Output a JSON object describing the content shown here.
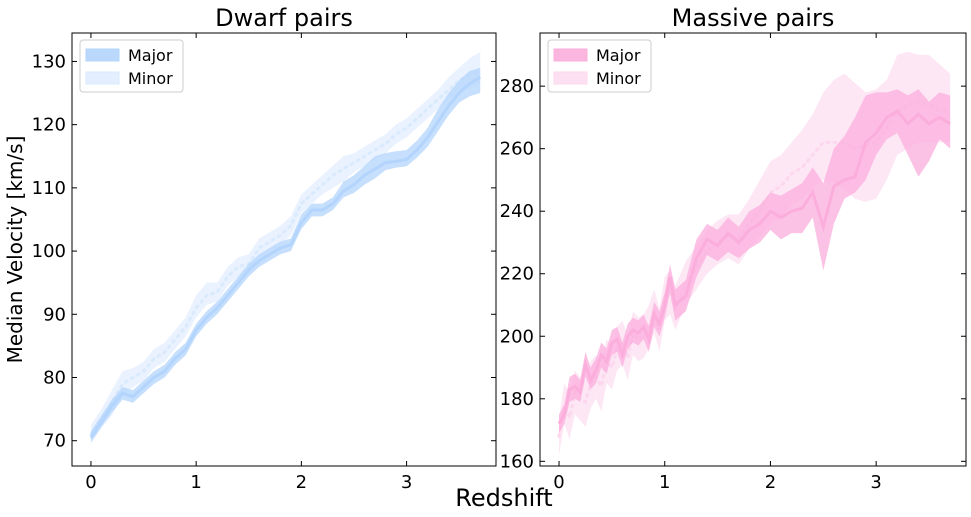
{
  "chart_data": [
    {
      "type": "area",
      "title": "Dwarf pairs",
      "ylabel": "Median Velocity [km/s]",
      "xlim": [
        -0.18,
        3.85
      ],
      "ylim": [
        66,
        134.5
      ],
      "xticks": [
        0,
        1,
        2,
        3
      ],
      "yticks": [
        70,
        80,
        90,
        100,
        110,
        120,
        130
      ],
      "legend": "top-left",
      "series": [
        {
          "name": "Major",
          "color": "#b3d4fc",
          "band_opacity": 0.75,
          "x": [
            0,
            0.1,
            0.2,
            0.3,
            0.4,
            0.5,
            0.6,
            0.7,
            0.8,
            0.9,
            1.0,
            1.1,
            1.2,
            1.3,
            1.4,
            1.5,
            1.6,
            1.7,
            1.8,
            1.9,
            2.0,
            2.1,
            2.2,
            2.3,
            2.4,
            2.5,
            2.6,
            2.7,
            2.8,
            2.9,
            3.0,
            3.1,
            3.2,
            3.3,
            3.4,
            3.5,
            3.6,
            3.7
          ],
          "mid": [
            70.5,
            73,
            75.5,
            77.5,
            77,
            78.5,
            80,
            81,
            83,
            84.5,
            87.5,
            89.5,
            91,
            93,
            95,
            97,
            98.5,
            99.5,
            100.5,
            101,
            104.5,
            106.5,
            106.5,
            107.5,
            109.5,
            110.5,
            112,
            113,
            114,
            114.2,
            114.5,
            116,
            118,
            120.5,
            123,
            125,
            126.5,
            127.5
          ],
          "lower": [
            69.8,
            72.2,
            74.5,
            76.5,
            76,
            77.5,
            79,
            80,
            82,
            83.5,
            86.5,
            88.5,
            90,
            92,
            94,
            96,
            97.5,
            98.5,
            99.5,
            100,
            103.5,
            105.5,
            105.5,
            106.5,
            108.5,
            109.2,
            110.5,
            111.5,
            112.8,
            113.2,
            113.4,
            114.8,
            116.5,
            119,
            121.5,
            123.5,
            124.5,
            125
          ],
          "upper": [
            71.5,
            74,
            76.5,
            78.5,
            78,
            79.5,
            81,
            82,
            84,
            85.5,
            88.5,
            90.5,
            92,
            94,
            96,
            98,
            99.5,
            100.5,
            101.5,
            102,
            105.8,
            107.5,
            107.5,
            108.5,
            111,
            112,
            113.5,
            115,
            115.5,
            115.8,
            116,
            117.5,
            119.5,
            122.5,
            125,
            127,
            128.5,
            129
          ]
        },
        {
          "name": "Minor",
          "color": "#daeafd",
          "band_opacity": 0.6,
          "x": [
            0,
            0.1,
            0.2,
            0.3,
            0.4,
            0.5,
            0.6,
            0.7,
            0.8,
            0.9,
            1.0,
            1.1,
            1.2,
            1.3,
            1.4,
            1.5,
            1.6,
            1.7,
            1.8,
            1.9,
            2.0,
            2.1,
            2.2,
            2.3,
            2.4,
            2.5,
            2.6,
            2.7,
            2.8,
            2.9,
            3.0,
            3.1,
            3.2,
            3.3,
            3.4,
            3.5,
            3.6,
            3.7
          ],
          "mid": [
            71,
            73.5,
            76,
            79,
            80,
            81,
            83,
            84,
            86,
            88,
            91,
            93,
            93.5,
            96,
            97.5,
            98,
            100.5,
            101.5,
            102.5,
            104,
            107.5,
            109,
            110.5,
            112,
            113,
            114,
            115,
            116,
            117,
            118.5,
            119.5,
            121,
            122.5,
            124,
            125.5,
            127,
            128,
            128.5
          ],
          "lower": [
            69.5,
            72,
            74,
            77,
            78.5,
            79.5,
            81.5,
            82.5,
            84.5,
            86.5,
            89.5,
            91.5,
            92,
            94.5,
            96,
            96.5,
            99,
            100,
            101,
            102.5,
            106,
            107.5,
            109,
            110,
            111,
            112.5,
            113.5,
            114.5,
            115.5,
            117,
            118,
            119.5,
            121,
            122.5,
            124,
            125,
            126,
            126.5
          ],
          "upper": [
            72.5,
            75,
            78,
            81,
            81.5,
            82.5,
            84.5,
            85.5,
            87.5,
            89.5,
            93,
            95,
            95,
            97.5,
            99,
            99.5,
            102,
            103,
            104,
            105.5,
            109,
            110.5,
            112,
            113.5,
            115,
            115.5,
            116.5,
            117.5,
            118.5,
            120,
            121,
            122.5,
            124,
            125.5,
            127.5,
            129,
            130.5,
            131.5
          ]
        }
      ]
    },
    {
      "type": "area",
      "title": "Massive pairs",
      "ylabel": "",
      "xlim": [
        -0.18,
        3.85
      ],
      "ylim": [
        158.5,
        297
      ],
      "xticks": [
        0,
        1,
        2,
        3
      ],
      "yticks": [
        160,
        180,
        200,
        220,
        240,
        260,
        280
      ],
      "legend": "top-left",
      "series": [
        {
          "name": "Major",
          "color": "#fbaedc",
          "band_opacity": 0.75,
          "x": [
            0,
            0.05,
            0.1,
            0.15,
            0.2,
            0.25,
            0.3,
            0.35,
            0.4,
            0.45,
            0.5,
            0.55,
            0.6,
            0.65,
            0.7,
            0.75,
            0.8,
            0.85,
            0.9,
            0.95,
            1.0,
            1.05,
            1.1,
            1.2,
            1.3,
            1.4,
            1.5,
            1.6,
            1.7,
            1.8,
            1.9,
            2.0,
            2.1,
            2.2,
            2.3,
            2.4,
            2.5,
            2.6,
            2.7,
            2.8,
            2.9,
            3.0,
            3.1,
            3.2,
            3.3,
            3.4,
            3.5,
            3.6,
            3.7
          ],
          "mid": [
            172,
            175,
            183,
            184,
            182,
            191,
            186,
            189,
            194,
            192,
            198,
            199,
            194,
            200,
            202,
            201,
            203,
            199,
            207,
            204,
            210,
            219,
            210,
            213,
            225,
            231,
            229,
            233,
            230,
            234,
            236,
            240,
            238,
            240,
            241,
            246,
            235,
            248,
            250,
            251,
            262,
            265,
            270,
            272,
            268,
            271,
            268,
            270,
            268
          ],
          "lower": [
            169,
            172,
            179,
            180,
            179,
            187,
            183,
            185,
            190,
            188,
            194,
            195,
            190,
            196,
            198,
            197,
            199,
            195,
            203,
            200,
            206,
            214,
            205,
            208,
            219,
            226,
            224,
            227,
            225,
            228,
            230,
            234,
            231,
            233,
            233,
            238,
            221,
            236,
            244,
            246,
            250,
            258,
            263,
            265,
            258,
            251,
            256,
            263,
            260
          ],
          "upper": [
            175,
            178,
            187,
            188,
            186,
            195,
            190,
            193,
            198,
            196,
            202,
            203,
            198,
            204,
            206,
            205,
            207,
            203,
            211,
            208,
            214,
            223,
            215,
            218,
            231,
            236,
            234,
            238,
            235,
            240,
            242,
            246,
            245,
            247,
            249,
            254,
            249,
            260,
            264,
            270,
            277,
            278,
            278,
            279,
            277,
            279,
            275,
            278,
            277
          ]
        },
        {
          "name": "Minor",
          "color": "#fcd7ee",
          "band_opacity": 0.6,
          "x": [
            0,
            0.05,
            0.1,
            0.15,
            0.2,
            0.25,
            0.3,
            0.35,
            0.4,
            0.45,
            0.5,
            0.55,
            0.6,
            0.65,
            0.7,
            0.75,
            0.8,
            0.85,
            0.9,
            0.95,
            1.0,
            1.05,
            1.1,
            1.2,
            1.3,
            1.4,
            1.5,
            1.6,
            1.7,
            1.8,
            1.9,
            2.0,
            2.1,
            2.2,
            2.3,
            2.4,
            2.5,
            2.6,
            2.7,
            2.8,
            2.9,
            3.0,
            3.1,
            3.2,
            3.3,
            3.4,
            3.5,
            3.6,
            3.7
          ],
          "mid": [
            168,
            178,
            174,
            182,
            180,
            179,
            185,
            187,
            184,
            192,
            190,
            196,
            198,
            193,
            201,
            199,
            200,
            203,
            208,
            202,
            212,
            214,
            209,
            217,
            222,
            227,
            230,
            232,
            231,
            236,
            240,
            246,
            248,
            252,
            254,
            258,
            262,
            262,
            262,
            260,
            261,
            262,
            267,
            272,
            274,
            275,
            274,
            272,
            272
          ],
          "lower": [
            162,
            172,
            167,
            175,
            173,
            171,
            177,
            180,
            176,
            185,
            183,
            189,
            191,
            186,
            194,
            192,
            193,
            196,
            201,
            195,
            205,
            207,
            202,
            210,
            215,
            220,
            223,
            225,
            223,
            228,
            232,
            236,
            238,
            242,
            244,
            247,
            250,
            249,
            247,
            244,
            243,
            244,
            250,
            258,
            260,
            262,
            262,
            262,
            262
          ],
          "upper": [
            174,
            185,
            181,
            189,
            187,
            186,
            192,
            194,
            191,
            199,
            197,
            203,
            205,
            200,
            208,
            206,
            207,
            210,
            215,
            209,
            219,
            221,
            216,
            224,
            229,
            234,
            237,
            239,
            239,
            244,
            250,
            256,
            258,
            262,
            266,
            271,
            278,
            282,
            284,
            281,
            278,
            279,
            282,
            290,
            291,
            290,
            290,
            287,
            284
          ]
        }
      ]
    }
  ],
  "figure": {
    "xlabel": "Redshift"
  }
}
